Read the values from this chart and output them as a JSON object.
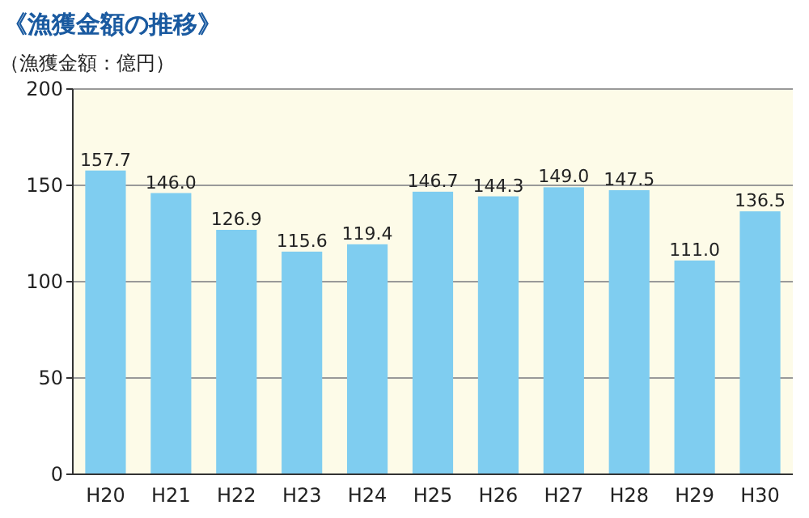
{
  "chart_data": {
    "type": "bar",
    "title": "《漁獲金額の推移》",
    "subtitle": "（漁獲金額：億円）",
    "categories": [
      "H20",
      "H21",
      "H22",
      "H23",
      "H24",
      "H25",
      "H26",
      "H27",
      "H28",
      "H29",
      "H30"
    ],
    "values": [
      157.7,
      146.0,
      126.9,
      115.6,
      119.4,
      146.7,
      144.3,
      149.0,
      147.5,
      111.0,
      136.5
    ],
    "value_labels": [
      "157.7",
      "146.0",
      "126.9",
      "115.6",
      "119.4",
      "146.7",
      "144.3",
      "149.0",
      "147.5",
      "111.0",
      "136.5"
    ],
    "color": "#7fcdf0",
    "ylim": [
      0,
      200
    ],
    "yticks": [
      0,
      50,
      100,
      150,
      200
    ],
    "grid": "y"
  }
}
